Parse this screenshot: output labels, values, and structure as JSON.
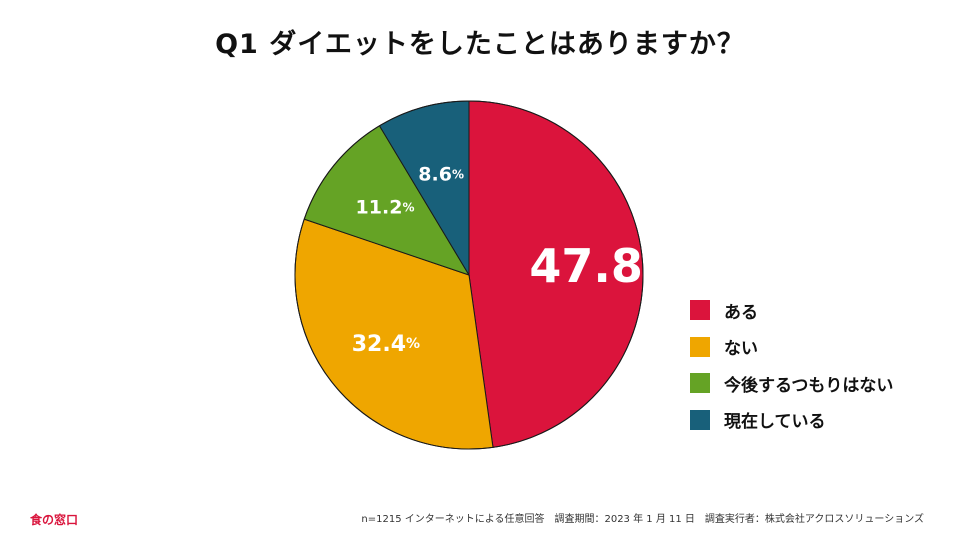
{
  "title": "Q1 ダイエットをしたことはありますか？",
  "chart_data": {
    "type": "pie",
    "title": "Q1 ダイエットをしたことはありますか？",
    "slices": [
      {
        "label": "ある",
        "value": 47.8,
        "value_text": "47.8",
        "color": "#db143c"
      },
      {
        "label": "ない",
        "value": 32.4,
        "value_text": "32.4",
        "color": "#efa600"
      },
      {
        "label": "今後するつもりはない",
        "value": 11.2,
        "value_text": "11.2",
        "color": "#65a325"
      },
      {
        "label": "現在している",
        "value": 8.6,
        "value_text": "8.6",
        "color": "#18607a"
      }
    ],
    "unit": "%",
    "legend_position": "right"
  },
  "brand": "食の窓口",
  "footnote": "n=1215 インターネットによる任意回答　調査期間：2023 年 1 月 11 日　調査実行者：株式会社アクロスソリューションズ"
}
